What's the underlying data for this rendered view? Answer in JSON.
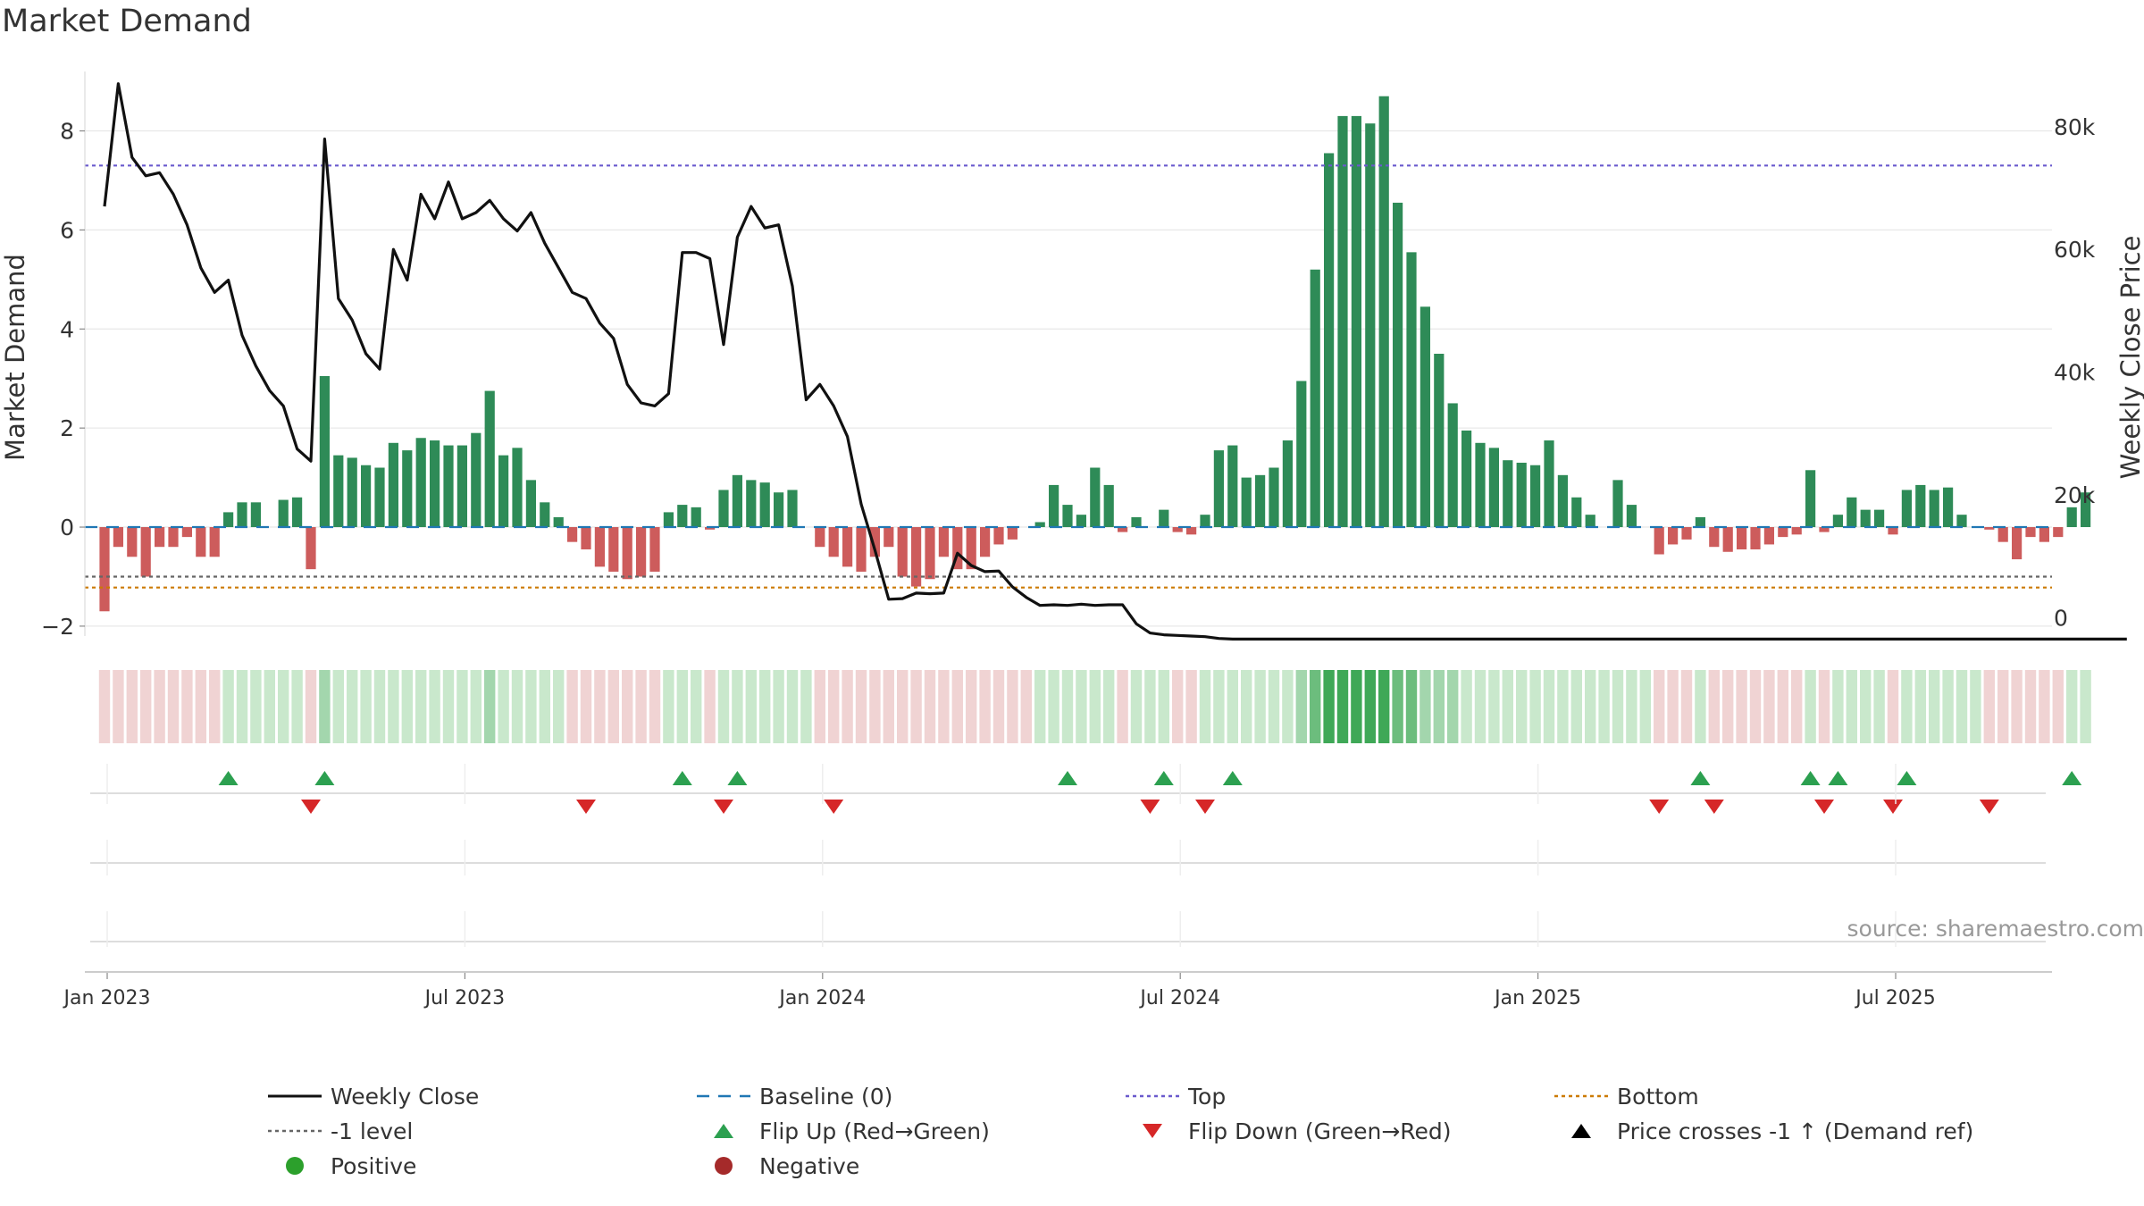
{
  "title": "Market Demand",
  "source_text": "source: sharemaestro.com",
  "colors": {
    "positive_bar": "#2e8b57",
    "negative_bar": "#cd5c5c",
    "close_line": "#111111",
    "top_line": "#6a5acd",
    "bottom_line": "#cc7a00",
    "neg1_line": "#666666",
    "baseline": "#1f77b4",
    "flip_up": "#2ca050",
    "flip_down": "#d62728",
    "positive_dot": "#2ca02c",
    "negative_dot": "#a52a2a",
    "grid": "#e8e8e8",
    "heat_pos_light": "#c9e8cc",
    "heat_pos_dark": "#3fa857",
    "heat_neg": "#f0d3d3"
  },
  "chart_data": {
    "type": "bar+line",
    "title": "Market Demand",
    "ylabel_left": "Market Demand",
    "ylabel_right": "Weekly Close Price",
    "y_left_range": [
      -2.2,
      9.2
    ],
    "y_left_ticks": [
      -2,
      0,
      2,
      4,
      6,
      8
    ],
    "y_left_tick_labels": [
      "−2",
      "0",
      "2",
      "4",
      "6",
      "8"
    ],
    "y_right_range": [
      -3000,
      89000
    ],
    "y_right_ticks": [
      0,
      20000,
      40000,
      60000,
      80000
    ],
    "y_right_tick_labels": [
      "0",
      "20k",
      "40k",
      "60k",
      "80k"
    ],
    "x_tick_labels": [
      "Jan 2023",
      "Jul 2023",
      "Jan 2024",
      "Jul 2024",
      "Jan 2025",
      "Jul 2025"
    ],
    "x_tick_weeks": [
      0,
      26,
      52,
      78,
      104,
      130
    ],
    "first_week": "2022-12-26",
    "reference_lines": {
      "top": 7.3,
      "neg1_level": -1.0,
      "bottom": -1.22,
      "baseline": 0
    },
    "demand": [
      -1.7,
      -0.4,
      -0.6,
      -1.0,
      -0.4,
      -0.4,
      -0.2,
      -0.6,
      -0.6,
      0.3,
      0.5,
      0.5,
      0.0,
      0.55,
      0.6,
      -0.85,
      3.05,
      1.45,
      1.4,
      1.25,
      1.2,
      1.7,
      1.55,
      1.8,
      1.75,
      1.65,
      1.65,
      1.9,
      2.75,
      1.45,
      1.6,
      0.95,
      0.5,
      0.2,
      -0.3,
      -0.45,
      -0.8,
      -0.9,
      -1.05,
      -1.0,
      -0.9,
      0.3,
      0.45,
      0.4,
      -0.05,
      0.75,
      1.05,
      0.95,
      0.9,
      0.7,
      0.75,
      0.0,
      -0.4,
      -0.6,
      -0.8,
      -0.9,
      -0.6,
      -0.4,
      -1.0,
      -1.2,
      -1.05,
      -0.6,
      -0.85,
      -0.85,
      -0.6,
      -0.35,
      -0.25,
      0.0,
      0.1,
      0.85,
      0.45,
      0.25,
      1.2,
      0.85,
      -0.1,
      0.2,
      0.0,
      0.35,
      -0.1,
      -0.15,
      0.25,
      1.55,
      1.65,
      1.0,
      1.05,
      1.2,
      1.75,
      2.95,
      5.2,
      7.55,
      8.3,
      8.3,
      8.15,
      8.7,
      6.55,
      5.55,
      4.45,
      3.5,
      2.5,
      1.95,
      1.7,
      1.6,
      1.35,
      1.3,
      1.25,
      1.75,
      1.05,
      0.6,
      0.25,
      0.0,
      0.95,
      0.45,
      0.0,
      -0.55,
      -0.35,
      -0.25,
      0.2,
      -0.4,
      -0.5,
      -0.45,
      -0.45,
      -0.35,
      -0.2,
      -0.15,
      1.15,
      -0.1,
      0.25,
      0.6,
      0.35,
      0.35,
      -0.15,
      0.75,
      0.85,
      0.75,
      0.8,
      0.25,
      0.0,
      -0.05,
      -0.3,
      -0.65,
      -0.2,
      -0.3,
      -0.2,
      0.4,
      0.7
    ],
    "weekly_close": [
      67000,
      87000,
      75000,
      72000,
      72500,
      69000,
      64000,
      57000,
      53000,
      55000,
      46000,
      41000,
      37000,
      34500,
      27500,
      25500,
      78000,
      52000,
      48500,
      43000,
      40500,
      60000,
      55000,
      69000,
      65000,
      71000,
      65000,
      66000,
      68000,
      65000,
      63000,
      66000,
      61000,
      57000,
      53000,
      52000,
      48000,
      45500,
      38000,
      35000,
      34500,
      36500,
      59500,
      59500,
      58500,
      44500,
      62000,
      67000,
      63500,
      64000,
      54000,
      35500,
      38000,
      34500,
      29500,
      18500,
      11000,
      3000,
      3100,
      4000,
      3900,
      4000,
      10500,
      8500,
      7500,
      7600,
      5000,
      3300,
      2000,
      2100,
      2000,
      2200,
      2000,
      2100,
      2100,
      -1000,
      -2500,
      -2800,
      -2900,
      -3000,
      -3100,
      -3400,
      -3500,
      -3500,
      -3500,
      -3500,
      -3500,
      -3500,
      -3500,
      -3500,
      -3500,
      -3500,
      -3500,
      -3500,
      -3500,
      -3500,
      -3500,
      -3500,
      -3500,
      -3500,
      -3500,
      -3500,
      -3500,
      -3500,
      -3500,
      -3500,
      -3500,
      -3500,
      -3500,
      -3500,
      -3500,
      -3500,
      -3500,
      -3500,
      -3500,
      -3500,
      -3500,
      -3500,
      -3500,
      -3500,
      -3500,
      -3500,
      -3500,
      -3500,
      -3500,
      -3500,
      -3500,
      -3500,
      -3500,
      -3500,
      -3500,
      -3500,
      -3500,
      -3500,
      -3500,
      -3500,
      -3500,
      -3500,
      -3500,
      -3500,
      -3500,
      -3500,
      -3500,
      -3500,
      -3500,
      -3500,
      -3500,
      -3500
    ],
    "flip_up_weeks": [
      9,
      16,
      42,
      46,
      70,
      77,
      82,
      116,
      124,
      126,
      131,
      143
    ],
    "flip_down_weeks": [
      15,
      35,
      45,
      53,
      76,
      80,
      113,
      117,
      125,
      130,
      137
    ]
  },
  "legend": [
    {
      "key": "close",
      "label": "Weekly Close",
      "symbol": "solid-line"
    },
    {
      "key": "baseline",
      "label": "Baseline (0)",
      "symbol": "dashed-line"
    },
    {
      "key": "top",
      "label": "Top",
      "symbol": "dotted-line"
    },
    {
      "key": "bottom",
      "label": "Bottom",
      "symbol": "dotted-line"
    },
    {
      "key": "neg1",
      "label": "-1 level",
      "symbol": "dotted-line"
    },
    {
      "key": "flip_up",
      "label": "Flip Up (Red→Green)",
      "symbol": "triangle-up"
    },
    {
      "key": "flip_down",
      "label": "Flip Down (Green→Red)",
      "symbol": "triangle-down"
    },
    {
      "key": "price_cross",
      "label": "Price crosses -1 ↑ (Demand ref)",
      "symbol": "triangle-up"
    },
    {
      "key": "positive",
      "label": "Positive",
      "symbol": "circle"
    },
    {
      "key": "negative",
      "label": "Negative",
      "symbol": "circle"
    }
  ]
}
